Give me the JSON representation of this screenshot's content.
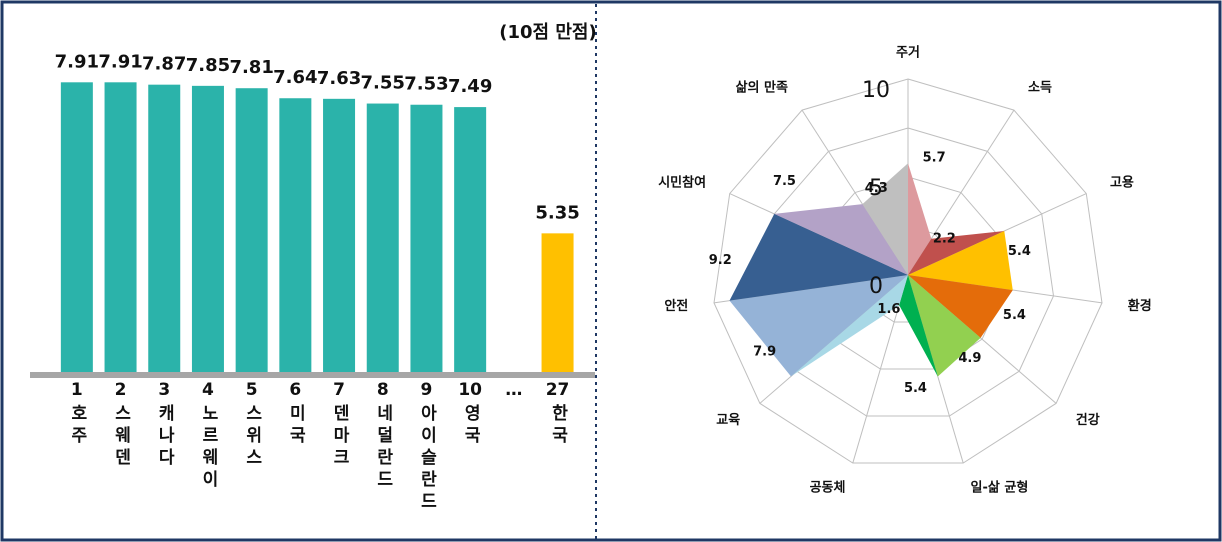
{
  "chart_data": [
    {
      "type": "bar",
      "annotation": "(10점 만점)",
      "ranks": [
        "1",
        "2",
        "3",
        "4",
        "5",
        "6",
        "7",
        "8",
        "9",
        "10",
        "…",
        "27"
      ],
      "categories": [
        "호주",
        "스웨덴",
        "캐나다",
        "노르웨이",
        "스위스",
        "미국",
        "덴마크",
        "네덜란드",
        "아이슬란드",
        "영국",
        null,
        "한국"
      ],
      "values": [
        7.91,
        7.91,
        7.87,
        7.85,
        7.81,
        7.64,
        7.63,
        7.55,
        7.53,
        7.49,
        null,
        5.35
      ],
      "colors": [
        "#2bb3aa",
        "#2bb3aa",
        "#2bb3aa",
        "#2bb3aa",
        "#2bb3aa",
        "#2bb3aa",
        "#2bb3aa",
        "#2bb3aa",
        "#2bb3aa",
        "#2bb3aa",
        null,
        "#ffc000"
      ],
      "ylim": [
        3,
        8
      ]
    },
    {
      "type": "radar",
      "categories": [
        "주거",
        "소득",
        "고용",
        "환경",
        "건강",
        "일-삶 균형",
        "공동체",
        "교육",
        "안전",
        "시민참여",
        "삶의 만족"
      ],
      "values": [
        5.7,
        2.2,
        5.4,
        5.4,
        4.9,
        5.4,
        1.6,
        7.9,
        9.2,
        7.5,
        4.3
      ],
      "colors": [
        "#dd9a9e",
        "#c0504d",
        "#ffc000",
        "#e46c0a",
        "#92d050",
        "#00b050",
        "#a8d8e6",
        "#95b3d7",
        "#375f91",
        "#b3a2c7",
        "#bfbfbf"
      ],
      "rlim": [
        0,
        10
      ],
      "rticks": [
        0,
        5,
        10
      ],
      "rminor": [
        2.5,
        7.5
      ]
    }
  ]
}
